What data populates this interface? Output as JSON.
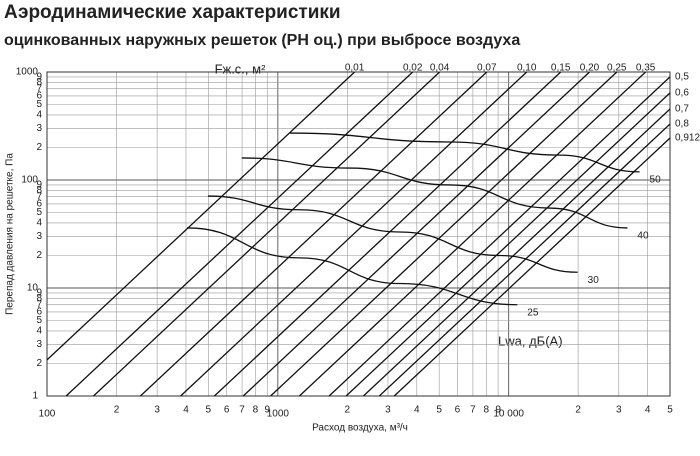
{
  "chart_data": {
    "type": "line",
    "title": "Аэродинамические характеристики",
    "subtitle": "оцинкованных наружных решеток (РН оц.) при выбросе воздуха",
    "x_label": "Расход воздуха, м³/ч",
    "y_label": "Перепад давления на решетке, Па",
    "area_label": "Fж.с., м²",
    "lwa_label": "Lwa, дБ(А)",
    "xscale": "log",
    "yscale": "log",
    "grid": true,
    "xlim": [
      100,
      50000
    ],
    "ylim": [
      1,
      1000
    ],
    "xticks": [
      100,
      {
        "value": 200,
        "label": "2"
      },
      {
        "value": 300,
        "label": "3"
      },
      {
        "value": 400,
        "label": "4"
      },
      {
        "value": 500,
        "label": "5"
      },
      {
        "value": 600,
        "label": "6"
      },
      {
        "value": 700,
        "label": "7"
      },
      {
        "value": 800,
        "label": "8"
      },
      {
        "value": 900,
        "label": "9"
      },
      1000,
      {
        "value": 2000,
        "label": "2"
      },
      {
        "value": 3000,
        "label": "3"
      },
      {
        "value": 4000,
        "label": "4"
      },
      {
        "value": 5000,
        "label": "5"
      },
      {
        "value": 6000,
        "label": "6"
      },
      {
        "value": 7000,
        "label": "7"
      },
      {
        "value": 8000,
        "label": "8"
      },
      {
        "value": 9000,
        "label": "9"
      },
      {
        "value": 10000,
        "label": "10 000"
      },
      {
        "value": 20000,
        "label": "2"
      },
      {
        "value": 30000,
        "label": "3"
      },
      {
        "value": 40000,
        "label": "4"
      },
      {
        "value": 50000,
        "label": "5"
      }
    ],
    "yticks": [
      1,
      {
        "value": 2,
        "label": "2"
      },
      {
        "value": 3,
        "label": "3"
      },
      {
        "value": 4,
        "label": "4"
      },
      {
        "value": 5,
        "label": "5"
      },
      {
        "value": 6,
        "label": "6"
      },
      {
        "value": 7,
        "label": "7"
      },
      {
        "value": 8,
        "label": "8"
      },
      {
        "value": 9,
        "label": "9"
      },
      10,
      {
        "value": 20,
        "label": "2"
      },
      {
        "value": 30,
        "label": "3"
      },
      {
        "value": 40,
        "label": "4"
      },
      {
        "value": 50,
        "label": "5"
      },
      {
        "value": 60,
        "label": "6"
      },
      {
        "value": 70,
        "label": "7"
      },
      {
        "value": 80,
        "label": "8"
      },
      {
        "value": 90,
        "label": "9"
      },
      100,
      {
        "value": 200,
        "label": "2"
      },
      {
        "value": 300,
        "label": "3"
      },
      {
        "value": 400,
        "label": "4"
      },
      {
        "value": 500,
        "label": "5"
      },
      {
        "value": 600,
        "label": "6"
      },
      {
        "value": 700,
        "label": "7"
      },
      {
        "value": 800,
        "label": "8"
      },
      {
        "value": 900,
        "label": "9"
      },
      1000
    ],
    "color": "#111111",
    "series": [
      {
        "name": "0,01",
        "x": [
          100,
          2150
        ],
        "values": [
          2.16,
          1000
        ]
      },
      {
        "name": "0,02",
        "x": [
          121,
          3840
        ],
        "values": [
          1,
          1000
        ]
      },
      {
        "name": "0,04",
        "x": [
          159,
          5020
        ],
        "values": [
          1,
          1000
        ]
      },
      {
        "name": "0,07",
        "x": [
          254,
          8040
        ],
        "values": [
          1,
          1000
        ]
      },
      {
        "name": "0,10",
        "x": [
          379,
          11970
        ],
        "values": [
          1,
          1000
        ]
      },
      {
        "name": "0,15",
        "x": [
          531,
          16800
        ],
        "values": [
          1,
          1000
        ]
      },
      {
        "name": "0,20",
        "x": [
          708,
          22400
        ],
        "values": [
          1,
          1000
        ]
      },
      {
        "name": "0,25",
        "x": [
          930,
          29400
        ],
        "values": [
          1,
          1000
        ]
      },
      {
        "name": "0,35",
        "x": [
          1240,
          39200
        ],
        "values": [
          1,
          1000
        ]
      },
      {
        "name": "0,5",
        "x": [
          1667,
          50000
        ],
        "values": [
          1,
          900
        ]
      },
      {
        "name": "0,6",
        "x": [
          1976,
          50000
        ],
        "values": [
          1,
          640
        ]
      },
      {
        "name": "0,7",
        "x": [
          2347,
          50000
        ],
        "values": [
          1,
          454
        ]
      },
      {
        "name": "0,8",
        "x": [
          2752,
          50000
        ],
        "values": [
          1,
          330
        ]
      },
      {
        "name": "0,912",
        "x": [
          3194,
          50000
        ],
        "values": [
          1,
          245
        ]
      }
    ],
    "lwa_series": [
      {
        "name": "50",
        "x": [
          1130,
          5560,
          16600,
          36900
        ],
        "values": [
          272,
          225,
          170,
          119
        ]
      },
      {
        "name": "40",
        "x": [
          698,
          2050,
          5560,
          15000,
          32700
        ],
        "values": [
          160,
          129,
          90,
          55,
          36
        ]
      },
      {
        "name": "30",
        "x": [
          498,
          1240,
          3370,
          9140,
          19900
        ],
        "values": [
          71,
          53,
          33,
          20,
          14
        ]
      },
      {
        "name": "25",
        "x": [
          404,
          1240,
          3370,
          10900
        ],
        "values": [
          36,
          19,
          11,
          7
        ]
      }
    ]
  }
}
